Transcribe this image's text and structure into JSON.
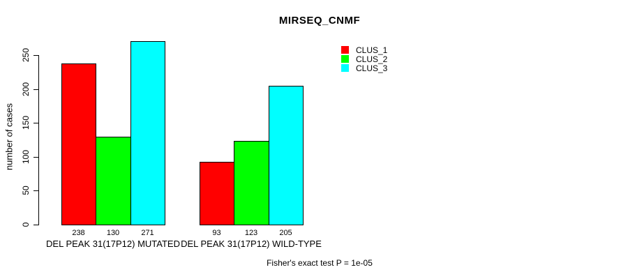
{
  "chart_data": {
    "type": "bar",
    "title": "MIRSEQ_CNMF",
    "ylabel": "number of cases",
    "xlabel": "",
    "categories": [
      "DEL PEAK 31(17P12) MUTATED",
      "DEL PEAK 31(17P12) WILD-TYPE"
    ],
    "series": [
      {
        "name": "CLUS_1",
        "color": "#ff0000",
        "values": [
          238,
          93
        ]
      },
      {
        "name": "CLUS_2",
        "color": "#00ff00",
        "values": [
          130,
          123
        ]
      },
      {
        "name": "CLUS_3",
        "color": "#00ffff",
        "values": [
          271,
          205
        ]
      }
    ],
    "ylim": [
      0,
      250
    ],
    "yticks": [
      0,
      50,
      100,
      150,
      200,
      250
    ],
    "grid": false,
    "bar_value_labels": true,
    "legend_position": "top-right-inside",
    "annotation": "Fisher's exact test P = 1e-05",
    "bar_border_color": "#000000",
    "axis_color": "#000000",
    "background_color": "#ffffff"
  }
}
